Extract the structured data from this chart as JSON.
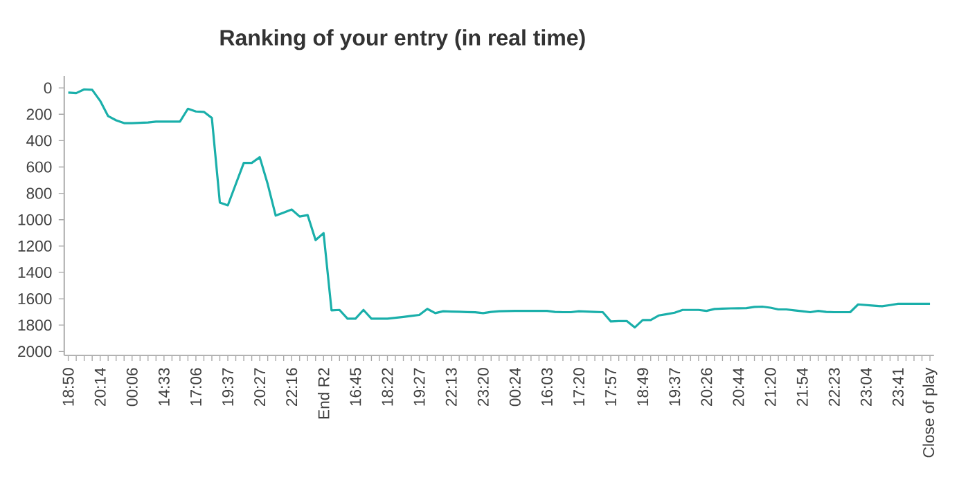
{
  "chart_data": {
    "type": "line",
    "title": "Ranking of your entry (in real time)",
    "categories": [
      "18:50",
      null,
      null,
      null,
      "20:14",
      null,
      null,
      null,
      "00:06",
      null,
      null,
      null,
      "14:33",
      null,
      null,
      null,
      "17:06",
      null,
      null,
      null,
      "19:37",
      null,
      null,
      null,
      "20:27",
      null,
      null,
      null,
      "22:16",
      null,
      null,
      null,
      "End R2",
      null,
      null,
      null,
      "16:45",
      null,
      null,
      null,
      "18:22",
      null,
      null,
      null,
      "19:27",
      null,
      null,
      null,
      "22:13",
      null,
      null,
      null,
      "23:20",
      null,
      null,
      null,
      "00:24",
      null,
      null,
      null,
      "16:03",
      null,
      null,
      null,
      "17:20",
      null,
      null,
      null,
      "17:57",
      null,
      null,
      null,
      "18:49",
      null,
      null,
      null,
      "19:37",
      null,
      null,
      null,
      "20:26",
      null,
      null,
      null,
      "20:44",
      null,
      null,
      null,
      "21:20",
      null,
      null,
      null,
      "21:54",
      null,
      null,
      null,
      "22:23",
      null,
      null,
      null,
      "23:04",
      null,
      null,
      null,
      "23:41",
      null,
      null,
      null,
      "Close of play"
    ],
    "series": [
      {
        "color": "#1aafaa",
        "values": [
          35,
          39,
          11,
          14,
          98,
          214,
          246,
          267,
          267,
          265,
          262,
          256,
          256,
          256,
          256,
          158,
          179,
          182,
          228,
          870,
          891,
          730,
          569,
          569,
          526,
          730,
          969,
          946,
          923,
          976,
          965,
          1155,
          1102,
          1688,
          1685,
          1751,
          1751,
          1685,
          1751,
          1751,
          1751,
          1745,
          1738,
          1730,
          1723,
          1677,
          1709,
          1695,
          1697,
          1699,
          1701,
          1703,
          1709,
          1700,
          1695,
          1693,
          1692,
          1692,
          1692,
          1692,
          1692,
          1700,
          1702,
          1702,
          1695,
          1697,
          1700,
          1702,
          1772,
          1770,
          1769,
          1818,
          1762,
          1762,
          1727,
          1717,
          1706,
          1685,
          1685,
          1685,
          1692,
          1678,
          1675,
          1673,
          1672,
          1671,
          1662,
          1660,
          1668,
          1681,
          1681,
          1688,
          1695,
          1702,
          1692,
          1700,
          1702,
          1702,
          1702,
          1643,
          1648,
          1653,
          1657,
          1648,
          1638,
          1638,
          1638,
          1638,
          1638
        ]
      }
    ],
    "ylim": [
      2030,
      -90
    ],
    "yticks": [
      0,
      200,
      400,
      600,
      800,
      1000,
      1200,
      1400,
      1600,
      1800,
      2000
    ],
    "grid": false,
    "legend": false,
    "marker": "none",
    "line_style": "solid"
  }
}
